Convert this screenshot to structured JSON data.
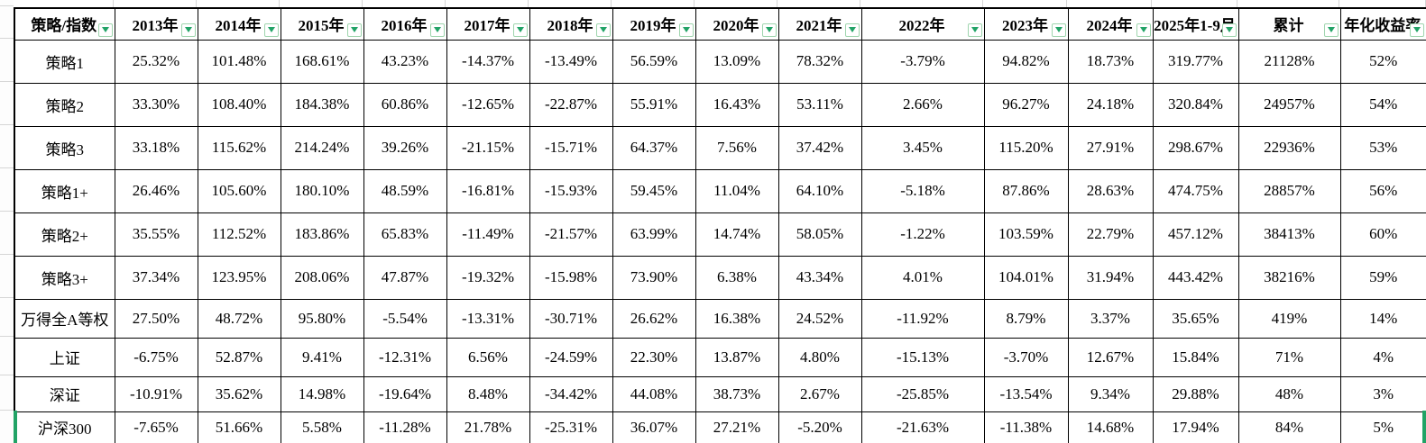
{
  "app": {
    "type": "spreadsheet-table",
    "colors": {
      "cell_text": "#000000",
      "highlight_red": "#ff0000",
      "border_black": "#000000",
      "filter_green": "#21a366",
      "sheet_gridline": "#d6d6d6",
      "selection_green": "#21a366"
    }
  },
  "table": {
    "columns": [
      "策略/指数",
      "2013年",
      "2014年",
      "2015年",
      "2016年",
      "2017年",
      "2018年",
      "2019年",
      "2020年",
      "2021年",
      "2022年",
      "2023年",
      "2024年",
      "2025年1-9月",
      "累计",
      "年化收益率"
    ],
    "rows": [
      {
        "label": "策略1",
        "cells": [
          "25.32%",
          "101.48%",
          "168.61%",
          "43.23%",
          "-14.37%",
          "-13.49%",
          "56.59%",
          "13.09%",
          "78.32%",
          "-3.79%",
          "94.82%",
          "18.73%",
          "319.77%",
          "21128%",
          "52%"
        ],
        "red": [
          5,
          8
        ]
      },
      {
        "label": "策略2",
        "cells": [
          "33.30%",
          "108.40%",
          "184.38%",
          "60.86%",
          "-12.65%",
          "-22.87%",
          "55.91%",
          "16.43%",
          "53.11%",
          "2.66%",
          "96.27%",
          "24.18%",
          "320.84%",
          "24957%",
          "54%"
        ],
        "red": [
          7
        ]
      },
      {
        "label": "策略3",
        "cells": [
          "33.18%",
          "115.62%",
          "214.24%",
          "39.26%",
          "-21.15%",
          "-15.71%",
          "64.37%",
          "7.56%",
          "37.42%",
          "3.45%",
          "115.20%",
          "27.91%",
          "298.67%",
          "22936%",
          "53%"
        ],
        "red": [
          2,
          10
        ]
      },
      {
        "label": "策略1+",
        "cells": [
          "26.46%",
          "105.60%",
          "180.10%",
          "48.59%",
          "-16.81%",
          "-15.93%",
          "59.45%",
          "11.04%",
          "64.10%",
          "-5.18%",
          "87.86%",
          "28.63%",
          "474.75%",
          "28857%",
          "56%"
        ],
        "red": [
          12
        ]
      },
      {
        "label": "策略2+",
        "cells": [
          "35.55%",
          "112.52%",
          "183.86%",
          "65.83%",
          "-11.49%",
          "-21.57%",
          "63.99%",
          "14.74%",
          "58.05%",
          "-1.22%",
          "103.59%",
          "22.79%",
          "457.12%",
          "38413%",
          "60%"
        ],
        "red": [
          3,
          4
        ]
      },
      {
        "label": "策略3+",
        "cells": [
          "37.34%",
          "123.95%",
          "208.06%",
          "47.87%",
          "-19.32%",
          "-15.98%",
          "73.90%",
          "6.38%",
          "43.34%",
          "4.01%",
          "104.01%",
          "31.94%",
          "443.42%",
          "38216%",
          "59%"
        ],
        "red": [
          0,
          1,
          6,
          9,
          11
        ]
      },
      {
        "label": "万得全A等权",
        "cells": [
          "27.50%",
          "48.72%",
          "95.80%",
          "-5.54%",
          "-13.31%",
          "-30.71%",
          "26.62%",
          "16.38%",
          "24.52%",
          "-11.92%",
          "8.79%",
          "3.37%",
          "35.65%",
          "419%",
          "14%"
        ],
        "red": [
          0,
          2,
          3,
          8,
          9,
          10,
          12
        ]
      },
      {
        "label": "上证",
        "cells": [
          "-6.75%",
          "52.87%",
          "9.41%",
          "-12.31%",
          "6.56%",
          "-24.59%",
          "22.30%",
          "13.87%",
          "4.80%",
          "-15.13%",
          "-3.70%",
          "12.67%",
          "15.84%",
          "71%",
          "4%"
        ],
        "red": [
          1,
          5
        ]
      },
      {
        "label": "深证",
        "cells": [
          "-10.91%",
          "35.62%",
          "14.98%",
          "-19.64%",
          "8.48%",
          "-34.42%",
          "44.08%",
          "38.73%",
          "2.67%",
          "-25.85%",
          "-13.54%",
          "9.34%",
          "29.88%",
          "48%",
          "3%"
        ],
        "red": [
          6,
          7
        ]
      },
      {
        "label": "沪深300",
        "cells": [
          "-7.65%",
          "51.66%",
          "5.58%",
          "-11.28%",
          "21.78%",
          "-25.31%",
          "36.07%",
          "27.21%",
          "-5.20%",
          "-21.63%",
          "-11.38%",
          "14.68%",
          "17.94%",
          "84%",
          "5%"
        ],
        "red": [
          4,
          11
        ]
      }
    ]
  }
}
